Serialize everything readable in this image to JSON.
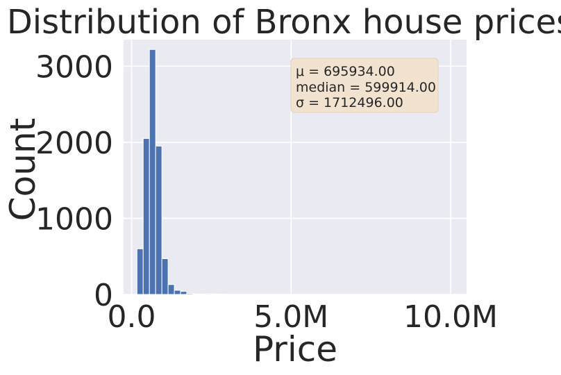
{
  "chart_data": {
    "type": "bar",
    "title": "Distribution of Bronx house prices",
    "xlabel": "Price",
    "ylabel": "Count",
    "xlim": [
      -250000,
      10500000
    ],
    "ylim": [
      0,
      3350
    ],
    "x_ticks": [
      0,
      5000000,
      10000000
    ],
    "x_tick_labels": [
      "0.0",
      "5.0M",
      "10.0M"
    ],
    "y_ticks": [
      0,
      1000,
      2000,
      3000
    ],
    "y_tick_labels": [
      "0",
      "1000",
      "2000",
      "3000"
    ],
    "grid": true,
    "bin_width": 195000,
    "bins": [
      {
        "x0": 170000,
        "count": 600
      },
      {
        "x0": 365000,
        "count": 2050
      },
      {
        "x0": 560000,
        "count": 3220
      },
      {
        "x0": 755000,
        "count": 1950
      },
      {
        "x0": 950000,
        "count": 470
      },
      {
        "x0": 1145000,
        "count": 130
      },
      {
        "x0": 1340000,
        "count": 55
      },
      {
        "x0": 1535000,
        "count": 40
      },
      {
        "x0": 1730000,
        "count": 12
      },
      {
        "x0": 1925000,
        "count": 6
      },
      {
        "x0": 2120000,
        "count": 4
      },
      {
        "x0": 2315000,
        "count": 10
      },
      {
        "x0": 2510000,
        "count": 5
      },
      {
        "x0": 2705000,
        "count": 3
      },
      {
        "x0": 2900000,
        "count": 2
      },
      {
        "x0": 3095000,
        "count": 1
      },
      {
        "x0": 3290000,
        "count": 1
      },
      {
        "x0": 3485000,
        "count": 1
      }
    ],
    "stats": {
      "mean_line": "μ = 695934.00",
      "median_line": "median = 599914.00",
      "sigma_line": "σ = 1712496.00"
    },
    "colors": {
      "bar": "#4c72b0",
      "bar_edge": "#ffffff",
      "plot_bg": "#eaeaf2",
      "grid": "#ffffff",
      "stats_box": "#f1e3cf"
    }
  }
}
